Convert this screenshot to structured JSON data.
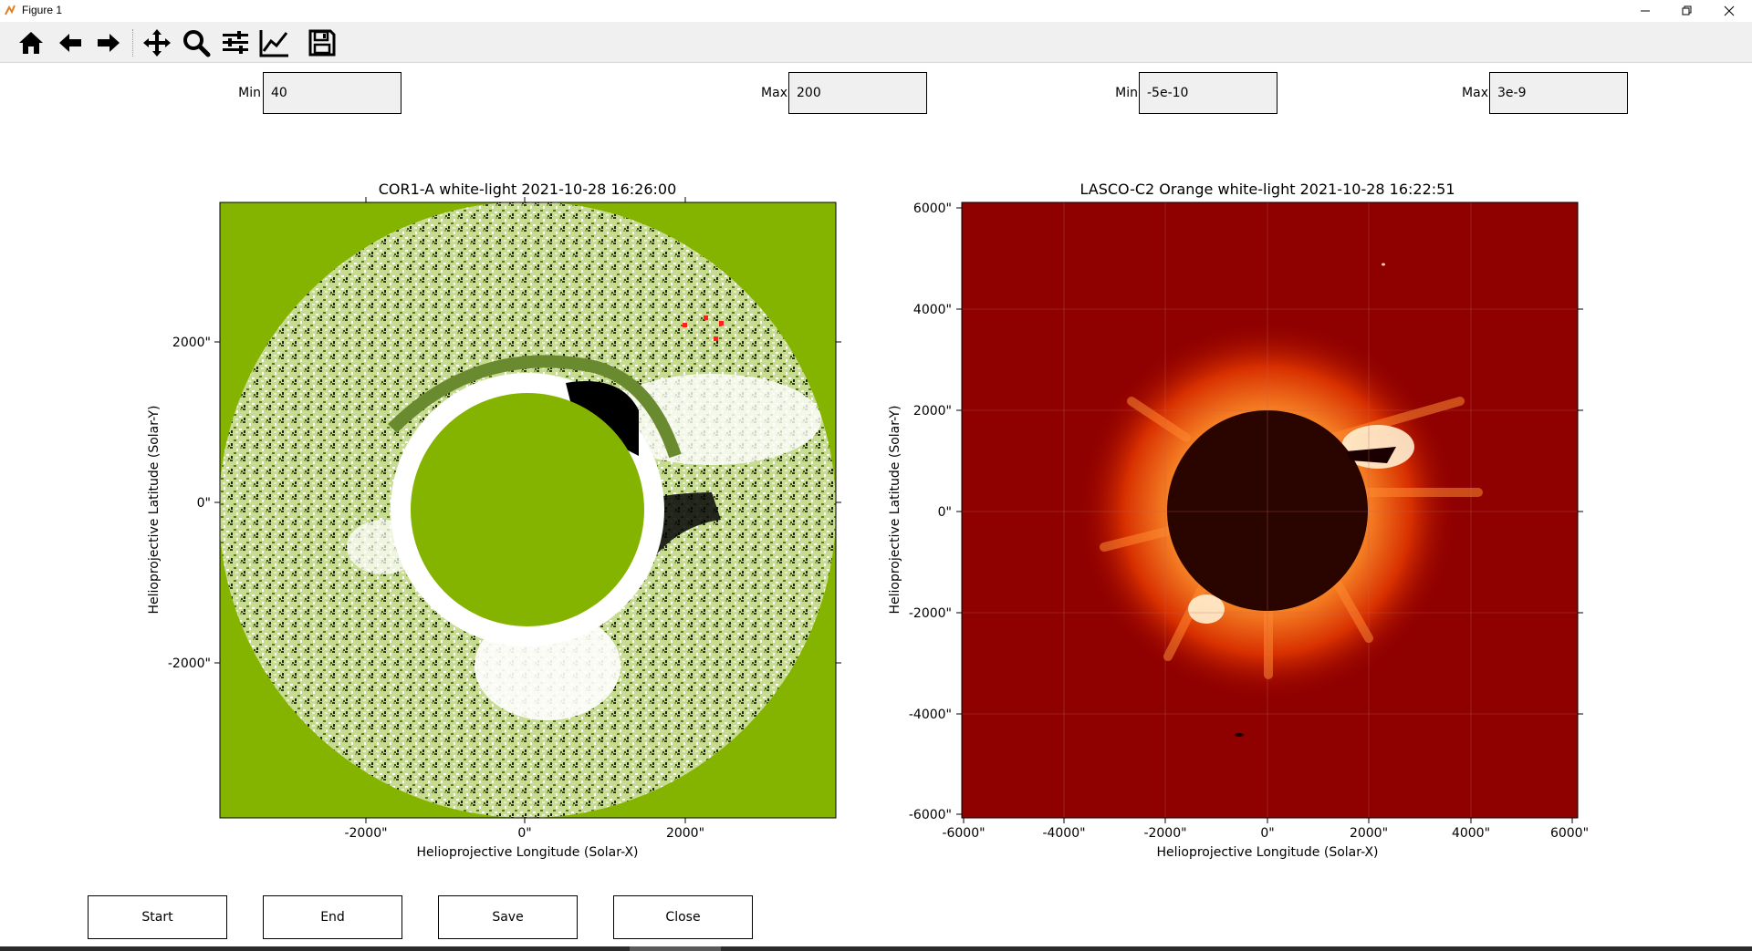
{
  "window": {
    "title": "Figure 1",
    "minimize_icon": "minimize-icon",
    "restore_icon": "restore-icon",
    "close_icon": "close-icon"
  },
  "toolbar": {
    "tools": [
      "home-icon",
      "back-arrow-icon",
      "forward-arrow-icon",
      "pan-icon",
      "zoom-icon",
      "subplots-icon",
      "axes-icon",
      "save-icon"
    ]
  },
  "controls": {
    "left_min": {
      "label": "Min",
      "value": "40"
    },
    "left_max": {
      "label": "Max",
      "value": "200"
    },
    "right_min": {
      "label": "Min",
      "value": "-5e-10"
    },
    "right_max": {
      "label": "Max",
      "value": "3e-9"
    }
  },
  "left_plot": {
    "title": "COR1-A white-light 2021-10-28 16:26:00",
    "xlabel": "Helioprojective Longitude (Solar-X)",
    "ylabel": "Helioprojective Latitude (Solar-Y)",
    "xticks": [
      "-2000\"",
      "0\"",
      "2000\""
    ],
    "yticks": [
      "2000\"",
      "0\"",
      "-2000\""
    ],
    "colors": {
      "background": "#84b400",
      "occulter": "#84b400"
    }
  },
  "right_plot": {
    "title": "LASCO-C2 Orange white-light 2021-10-28 16:22:51",
    "xlabel": "Helioprojective Longitude (Solar-X)",
    "ylabel": "Helioprojective Latitude (Solar-Y)",
    "xticks": [
      "-6000\"",
      "-4000\"",
      "-2000\"",
      "0\"",
      "2000\"",
      "4000\"",
      "6000\""
    ],
    "yticks": [
      "6000\"",
      "4000\"",
      "2000\"",
      "0\"",
      "-2000\"",
      "-4000\"",
      "-6000\""
    ],
    "colors": {
      "background": "#8f0000",
      "corona": "#ff7a1a",
      "disk": "#2a0500"
    }
  },
  "buttons": {
    "start": "Start",
    "end": "End",
    "save": "Save",
    "close": "Close"
  }
}
